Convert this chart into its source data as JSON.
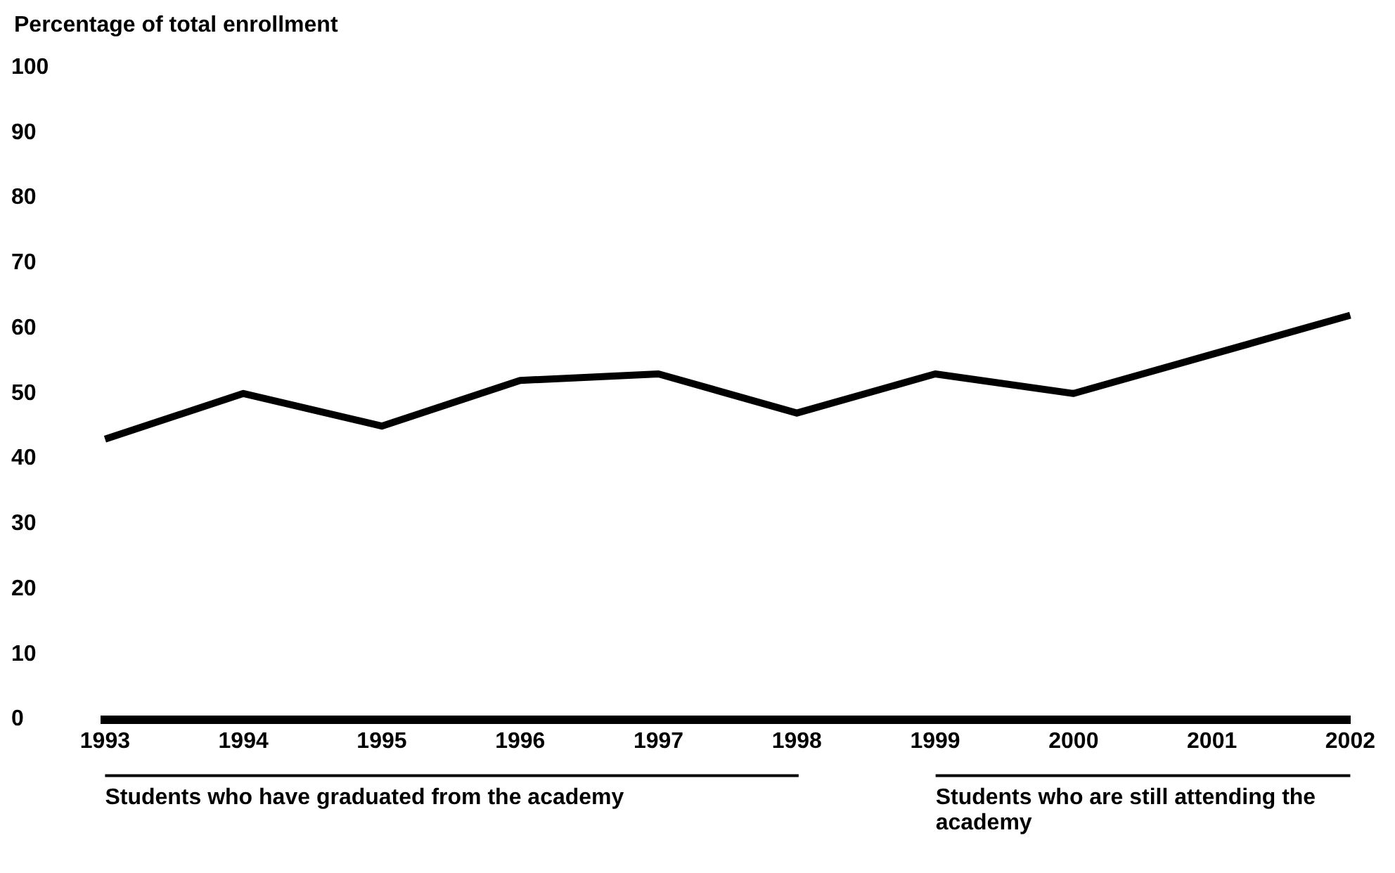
{
  "chart_data": {
    "type": "line",
    "ylabel": "Percentage of total enrollment",
    "categories": [
      "1993",
      "1994",
      "1995",
      "1996",
      "1997",
      "1998",
      "1999",
      "2000",
      "2001",
      "2002"
    ],
    "values": [
      43,
      50,
      45,
      52,
      53,
      47,
      53,
      50,
      56,
      62
    ],
    "color": "#000000",
    "ylim": [
      0,
      100
    ],
    "yticks": [
      0,
      10,
      20,
      30,
      40,
      50,
      60,
      70,
      80,
      90,
      100
    ],
    "grid": false,
    "annotations": [
      "Students who have graduated from the academy",
      "Students who are still attending the academy"
    ]
  }
}
